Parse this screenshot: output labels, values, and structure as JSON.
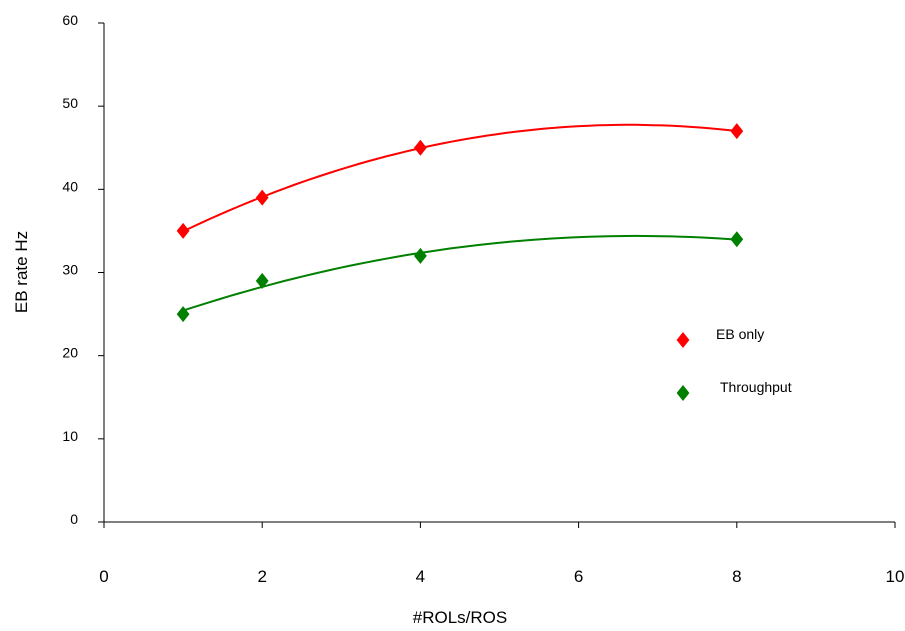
{
  "chart_data": {
    "type": "scatter",
    "xlabel": "#ROLs/ROS",
    "ylabel": "EB rate Hz",
    "xlim": [
      0,
      10
    ],
    "ylim": [
      0,
      60
    ],
    "xticks": [
      0,
      2,
      4,
      6,
      8,
      10
    ],
    "yticks": [
      0,
      10,
      20,
      30,
      40,
      50,
      60
    ],
    "grid": false,
    "legend_position": "right",
    "series": [
      {
        "name": "EB only",
        "color": "#ff0000",
        "marker": "diamond",
        "trendline": "polynomial",
        "x": [
          1,
          2,
          4,
          8
        ],
        "y": [
          35,
          39,
          45,
          47
        ]
      },
      {
        "name": "Throughput",
        "color": "#008000",
        "marker": "diamond",
        "trendline": "polynomial",
        "x": [
          1,
          2,
          4,
          8
        ],
        "y": [
          25,
          29,
          32,
          34
        ]
      }
    ]
  }
}
